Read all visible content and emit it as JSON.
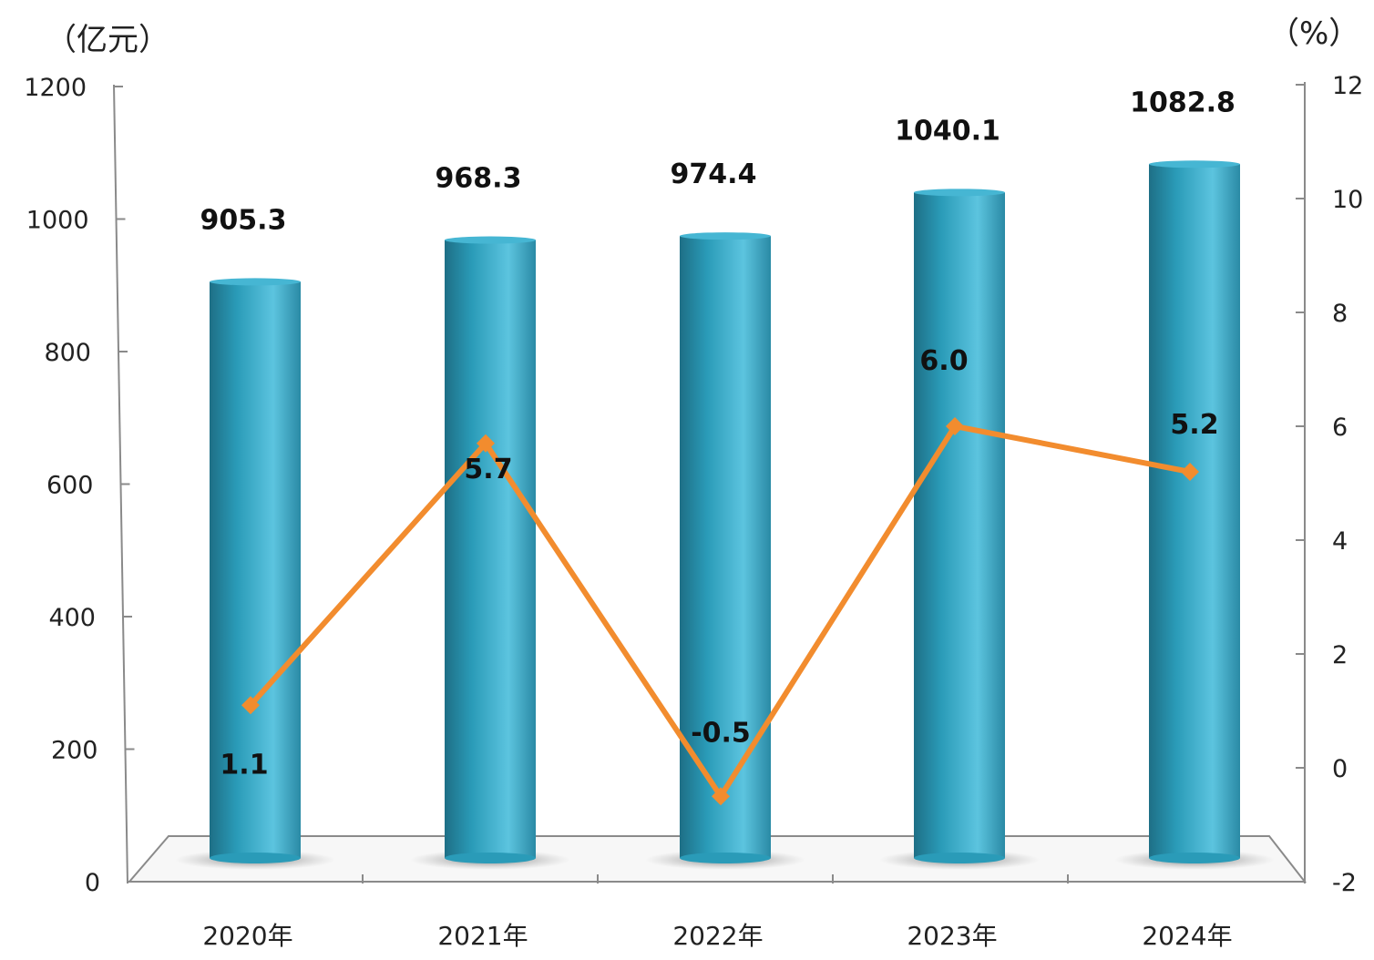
{
  "chart_data": {
    "type": "bar",
    "categories": [
      "2020年",
      "2021年",
      "2022年",
      "2023年",
      "2024年"
    ],
    "series": [
      {
        "type": "bar",
        "axis": "left",
        "values": [
          905.3,
          968.3,
          974.4,
          1040.1,
          1082.8
        ],
        "labels": [
          "905.3",
          "968.3",
          "974.4",
          "1040.1",
          "1082.8"
        ],
        "color": "#2a9bb8"
      },
      {
        "type": "line",
        "axis": "right",
        "values": [
          1.1,
          5.7,
          -0.5,
          6.0,
          5.2
        ],
        "labels": [
          "1.1",
          "5.7",
          "-0.5",
          "6.0",
          "5.2"
        ],
        "color": "#f28c2e"
      }
    ],
    "y_left": {
      "unit": "（亿元）",
      "range": [
        0,
        1200
      ],
      "ticks": [
        "0",
        "200",
        "400",
        "600",
        "800",
        "1000",
        "1200"
      ]
    },
    "y_right": {
      "unit": "（%）",
      "range": [
        -2,
        12
      ],
      "ticks": [
        "-2",
        "0",
        "2",
        "4",
        "6",
        "8",
        "10",
        "12"
      ]
    },
    "grid": false,
    "legend": "none"
  }
}
